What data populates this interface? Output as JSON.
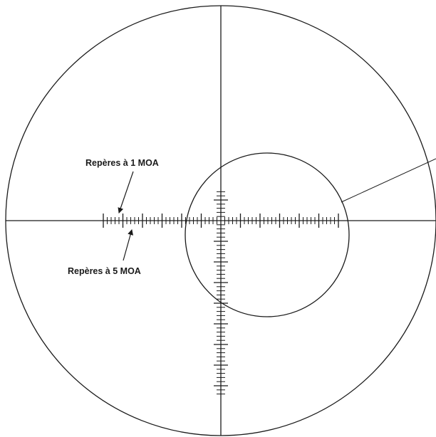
{
  "diagram": {
    "labels": {
      "one_moa": "Repères à 1 MOA",
      "five_moa": "Repères à 5 MOA"
    },
    "colors": {
      "line": "#1a1a1a",
      "background": "#ffffff"
    }
  }
}
